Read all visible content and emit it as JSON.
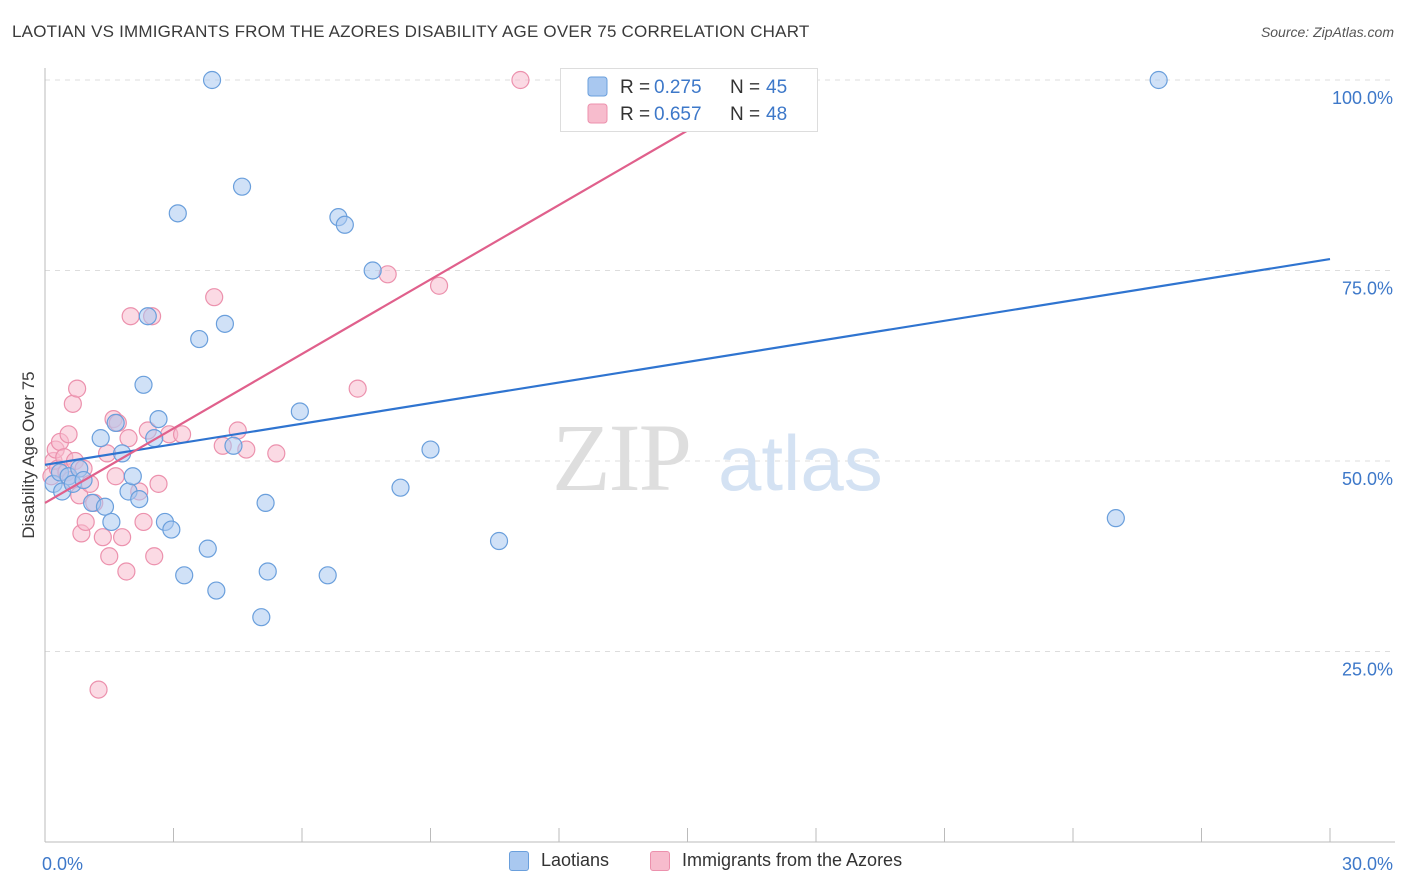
{
  "title": "LAOTIAN VS IMMIGRANTS FROM THE AZORES DISABILITY AGE OVER 75 CORRELATION CHART",
  "source": "Source: ZipAtlas.com",
  "watermark": {
    "zip": "ZIP",
    "atlas": "atlas"
  },
  "colors": {
    "blue_fill": "#a9c8f0",
    "blue_stroke": "#6a9fdc",
    "blue_line": "#2f74d0",
    "pink_fill": "#f7bccd",
    "pink_stroke": "#ec91ad",
    "pink_line": "#e0608c",
    "axis_label": "#3d78c9",
    "grid": "#dddddd"
  },
  "legend_top": [
    {
      "r_label": "R = ",
      "r_value": "0.275",
      "n_label": "N = ",
      "n_value": "45",
      "series": "blue"
    },
    {
      "r_label": "R = ",
      "r_value": "0.657",
      "n_label": "N = ",
      "n_value": "48",
      "series": "pink"
    }
  ],
  "legend_bottom": [
    {
      "label": "Laotians",
      "series": "blue"
    },
    {
      "label": "Immigrants from the Azores",
      "series": "pink"
    }
  ],
  "chart_data": {
    "type": "scatter",
    "title": "LAOTIAN VS IMMIGRANTS FROM THE AZORES DISABILITY AGE OVER 75 CORRELATION CHART",
    "xlabel": "",
    "ylabel": "Disability Age Over 75",
    "xlim": [
      0,
      30
    ],
    "ylim": [
      0,
      100
    ],
    "x_tick_labels": [
      {
        "value": 0,
        "label": "0.0%"
      },
      {
        "value": 30,
        "label": "30.0%"
      }
    ],
    "y_tick_labels": [
      {
        "value": 25,
        "label": "25.0%"
      },
      {
        "value": 50,
        "label": "50.0%"
      },
      {
        "value": 75,
        "label": "75.0%"
      },
      {
        "value": 100,
        "label": "100.0%"
      }
    ],
    "grid": true,
    "series": [
      {
        "name": "Laotians",
        "color": "blue",
        "trend": {
          "x0": 0,
          "y0": 49.5,
          "x1": 30,
          "y1": 76.5
        },
        "points": [
          [
            0.2,
            47
          ],
          [
            0.35,
            48.5
          ],
          [
            0.4,
            46
          ],
          [
            0.55,
            48
          ],
          [
            0.65,
            47
          ],
          [
            0.8,
            49
          ],
          [
            0.9,
            47.5
          ],
          [
            1.1,
            44.5
          ],
          [
            1.3,
            53
          ],
          [
            1.4,
            44
          ],
          [
            1.55,
            42
          ],
          [
            1.65,
            55
          ],
          [
            1.8,
            51
          ],
          [
            1.95,
            46
          ],
          [
            2.05,
            48
          ],
          [
            2.2,
            45
          ],
          [
            2.3,
            60
          ],
          [
            2.4,
            69
          ],
          [
            2.55,
            53
          ],
          [
            2.65,
            55.5
          ],
          [
            2.8,
            42
          ],
          [
            2.95,
            41
          ],
          [
            3.1,
            82.5
          ],
          [
            3.25,
            35
          ],
          [
            3.6,
            66
          ],
          [
            3.8,
            38.5
          ],
          [
            3.9,
            100
          ],
          [
            4.0,
            33
          ],
          [
            4.2,
            68
          ],
          [
            4.4,
            52
          ],
          [
            4.6,
            86
          ],
          [
            5.05,
            29.5
          ],
          [
            5.15,
            44.5
          ],
          [
            5.2,
            35.5
          ],
          [
            5.95,
            56.5
          ],
          [
            6.6,
            35
          ],
          [
            6.85,
            82
          ],
          [
            7.0,
            81
          ],
          [
            7.65,
            75
          ],
          [
            8.3,
            46.5
          ],
          [
            9.0,
            51.5
          ],
          [
            10.6,
            39.5
          ],
          [
            25.0,
            42.5
          ],
          [
            26.0,
            100
          ]
        ]
      },
      {
        "name": "Immigrants from the Azores",
        "color": "pink",
        "trend": {
          "x0": 0,
          "y0": 44.5,
          "x1": 15.5,
          "y1": 95
        },
        "points": [
          [
            0.15,
            48
          ],
          [
            0.2,
            50
          ],
          [
            0.25,
            51.5
          ],
          [
            0.3,
            49
          ],
          [
            0.35,
            52.5
          ],
          [
            0.45,
            50.5
          ],
          [
            0.5,
            48.5
          ],
          [
            0.55,
            53.5
          ],
          [
            0.6,
            47.5
          ],
          [
            0.65,
            57.5
          ],
          [
            0.7,
            50
          ],
          [
            0.75,
            59.5
          ],
          [
            0.8,
            45.5
          ],
          [
            0.85,
            40.5
          ],
          [
            0.9,
            49
          ],
          [
            0.95,
            42
          ],
          [
            1.05,
            47
          ],
          [
            1.15,
            44.5
          ],
          [
            1.25,
            20
          ],
          [
            1.35,
            40
          ],
          [
            1.45,
            51
          ],
          [
            1.5,
            37.5
          ],
          [
            1.6,
            55.5
          ],
          [
            1.65,
            48
          ],
          [
            1.7,
            55
          ],
          [
            1.8,
            40
          ],
          [
            1.9,
            35.5
          ],
          [
            1.95,
            53
          ],
          [
            2.0,
            69
          ],
          [
            2.2,
            46
          ],
          [
            2.3,
            42
          ],
          [
            2.4,
            54
          ],
          [
            2.5,
            69
          ],
          [
            2.55,
            37.5
          ],
          [
            2.65,
            47
          ],
          [
            2.9,
            53.5
          ],
          [
            3.2,
            53.5
          ],
          [
            3.95,
            71.5
          ],
          [
            4.15,
            52
          ],
          [
            4.5,
            54
          ],
          [
            4.7,
            51.5
          ],
          [
            5.4,
            51
          ],
          [
            7.3,
            59.5
          ],
          [
            8.0,
            74.5
          ],
          [
            9.2,
            73
          ],
          [
            11.1,
            100
          ]
        ]
      }
    ]
  }
}
